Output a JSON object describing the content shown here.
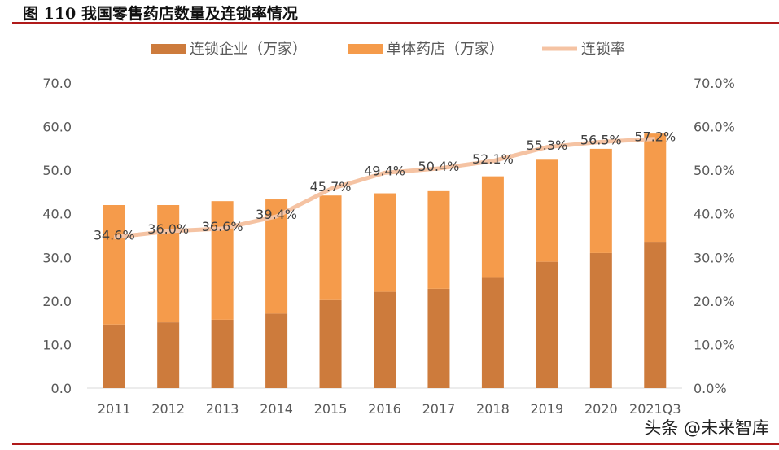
{
  "title": "图 110  我国零售药店数量及连锁率情况",
  "watermark": "头条 @未来智库",
  "chart_data": {
    "type": "bar",
    "stacked": true,
    "categories": [
      "2011",
      "2012",
      "2013",
      "2014",
      "2015",
      "2016",
      "2017",
      "2018",
      "2019",
      "2020",
      "2021Q3"
    ],
    "series": [
      {
        "name": "连锁企业（万家）",
        "type": "bar",
        "color": "#cd7b3c",
        "values": [
          14.6,
          15.1,
          15.7,
          17.1,
          20.2,
          22.1,
          22.8,
          25.3,
          29.0,
          31.0,
          33.4
        ]
      },
      {
        "name": "单体药店（万家）",
        "type": "bar",
        "color": "#f59b4b",
        "values": [
          27.4,
          26.9,
          27.2,
          26.2,
          24.0,
          22.6,
          22.4,
          23.3,
          23.4,
          23.9,
          25.0
        ]
      },
      {
        "name": "连锁率",
        "type": "line",
        "axis": "right",
        "color": "#f5c3a3",
        "values": [
          34.6,
          36.0,
          36.6,
          39.4,
          45.7,
          49.4,
          50.4,
          52.1,
          55.3,
          56.5,
          57.2
        ],
        "labels": [
          "34.6%",
          "36.0%",
          "36.6%",
          "39.4%",
          "45.7%",
          "49.4%",
          "50.4%",
          "52.1%",
          "55.3%",
          "56.5%",
          "57.2%"
        ]
      }
    ],
    "y_left": {
      "range": [
        0,
        70
      ],
      "ticks": [
        "0.0",
        "10.0",
        "20.0",
        "30.0",
        "40.0",
        "50.0",
        "60.0",
        "70.0"
      ]
    },
    "y_right": {
      "range": [
        0,
        70
      ],
      "ticks": [
        "0.0%",
        "10.0%",
        "20.0%",
        "30.0%",
        "40.0%",
        "50.0%",
        "60.0%",
        "70.0%"
      ]
    },
    "grid": false,
    "legend": "top"
  }
}
